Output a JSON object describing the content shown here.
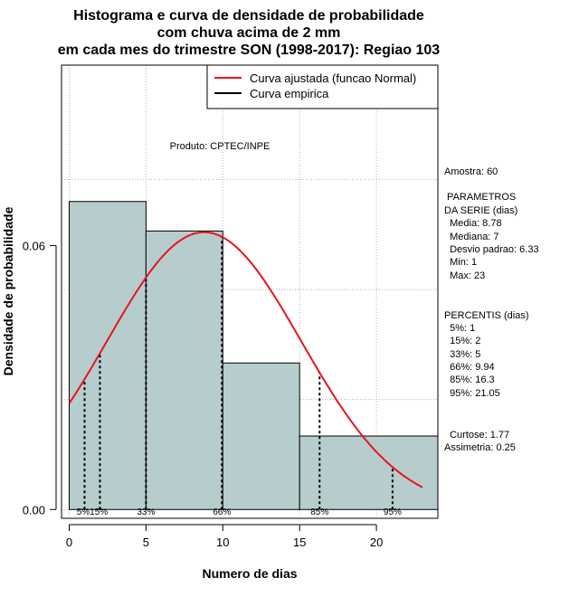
{
  "chart_data": {
    "type": "histogram",
    "title": [
      "Histograma e curva de densidade de probabilidade",
      "com chuva acima de 2 mm",
      "em cada mes do trimestre SON (1998-2017): Regiao 103"
    ],
    "xlabel": "Numero de dias",
    "ylabel": "Densidade de probabilidade",
    "xlim": [
      -0.5,
      24
    ],
    "ylim": [
      -0.002,
      0.101
    ],
    "x_ticks": [
      0,
      5,
      10,
      15,
      20
    ],
    "x_tick_labels": [
      "0",
      "5",
      "10",
      "15",
      "20"
    ],
    "y_ticks": [
      0.0,
      0.06
    ],
    "y_tick_labels": [
      "0.00",
      "0.06"
    ],
    "grid": true,
    "bins": [
      {
        "start": 0,
        "end": 5,
        "density": 0.07
      },
      {
        "start": 5,
        "end": 10,
        "density": 0.0633
      },
      {
        "start": 10,
        "end": 15,
        "density": 0.0333
      },
      {
        "start": 15,
        "end": 24,
        "density": 0.0167
      }
    ],
    "bar_color": "#b7cdcd",
    "curve": {
      "name": "Curva ajustada (funcao Normal)",
      "mean": 8.78,
      "sd": 6.33,
      "x_from": 0,
      "x_to": 23,
      "color": "#e8141b"
    },
    "empirical": {
      "name": "Curva empirica",
      "color": "#000000"
    },
    "percentile_lines": [
      {
        "label": "5%",
        "x": 1
      },
      {
        "label": "15%",
        "x": 2
      },
      {
        "label": "33%",
        "x": 5
      },
      {
        "label": "66%",
        "x": 9.94
      },
      {
        "label": "85%",
        "x": 16.3
      },
      {
        "label": "95%",
        "x": 21.05
      }
    ],
    "percentile_axis_labels": [
      {
        "text": "5%15%",
        "x": 1.5
      },
      {
        "text": "33%",
        "x": 5
      },
      {
        "text": "66%",
        "x": 9.94
      },
      {
        "text": "85%",
        "x": 16.3
      },
      {
        "text": "95%",
        "x": 21.05
      }
    ],
    "legend": {
      "position": "top-right",
      "entries": [
        {
          "label": "Curva ajustada (funcao Normal)",
          "color": "#e8141b"
        },
        {
          "label": "Curva empirica",
          "color": "#000000"
        }
      ]
    },
    "annotation": "Produto: CPTEC/INPE",
    "side_text": [
      "Amostra: 60",
      " PARAMETROS",
      "DA SERIE (dias)",
      "  Media: 8.78",
      "  Mediana: 7",
      "  Desvio padrao: 6.33",
      "  Min: 1",
      "  Max: 23",
      "PERCENTIS (dias)",
      "  5%: 1",
      "  15%: 2",
      "  33%: 5",
      "  66%: 9.94",
      "  85%: 16.3",
      "  95%: 21.05",
      "  Curtose: 1.77",
      "Assimetria: 0.25"
    ]
  }
}
